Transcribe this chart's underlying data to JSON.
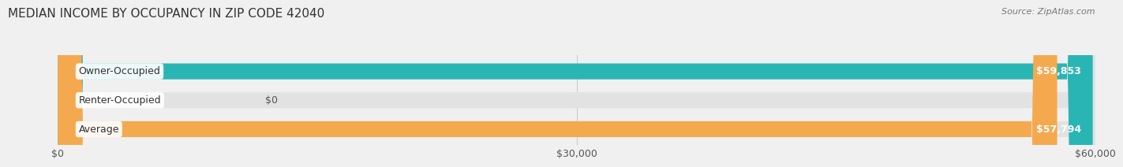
{
  "title": "MEDIAN INCOME BY OCCUPANCY IN ZIP CODE 42040",
  "source": "Source: ZipAtlas.com",
  "categories": [
    "Owner-Occupied",
    "Renter-Occupied",
    "Average"
  ],
  "values": [
    59853,
    0,
    57794
  ],
  "bar_colors": [
    "#2ab5b5",
    "#c8a8d8",
    "#f5a94e"
  ],
  "value_labels": [
    "$59,853",
    "$0",
    "$57,794"
  ],
  "xlim": [
    0,
    60000
  ],
  "xtick_values": [
    0,
    30000,
    60000
  ],
  "xtick_labels": [
    "$0",
    "$30,000",
    "$60,000"
  ],
  "background_color": "#f0f0f0",
  "bar_bg_color": "#e2e2e2",
  "title_fontsize": 11,
  "source_fontsize": 8,
  "label_fontsize": 9,
  "tick_fontsize": 9,
  "bar_height": 0.55,
  "value_text_color_inside": "#ffffff",
  "value_text_color_zero": "#555555"
}
